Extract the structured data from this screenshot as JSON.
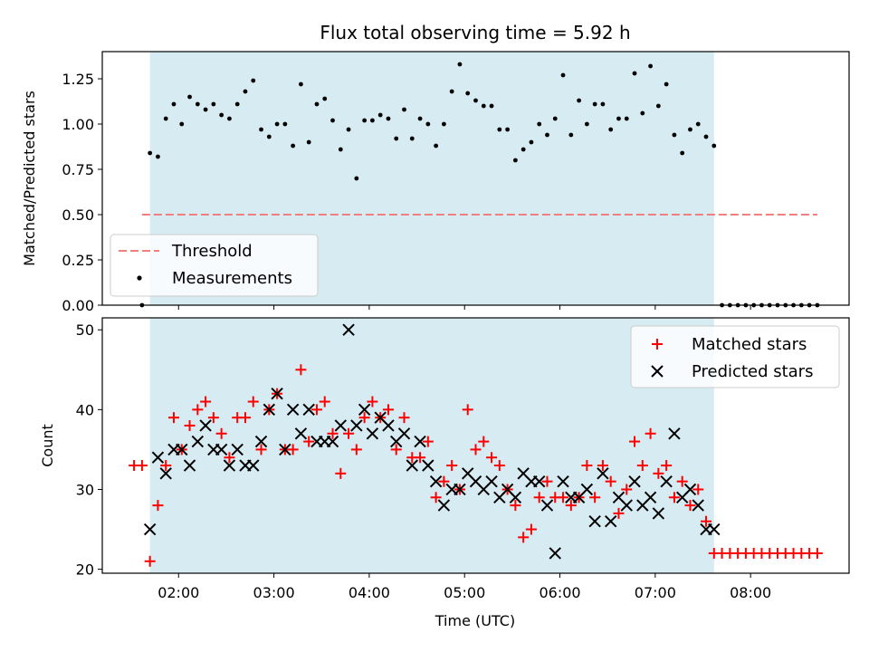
{
  "chart_data": [
    {
      "type": "scatter",
      "panel": "top",
      "title": "Flux total observing time = 5.92 h",
      "ylabel": "Matched/Predicted stars",
      "ylim": [
        0,
        1.4
      ],
      "yticks": [
        0.0,
        0.25,
        0.5,
        0.75,
        1.0,
        1.25
      ],
      "ytick_labels": [
        "0.00",
        "0.25",
        "0.50",
        "0.75",
        "1.00",
        "1.25"
      ],
      "grid": false,
      "legend_position": "bottom-left",
      "legend": [
        "Threshold",
        "Measurements"
      ],
      "observing_window": {
        "start": "01:42",
        "end": "07:37"
      },
      "threshold": {
        "name": "Threshold",
        "value": 0.5,
        "x_start": "01:37",
        "x_end": "08:42",
        "color": "#f08080"
      },
      "series": [
        {
          "name": "Measurements",
          "color": "#000000",
          "x": [
            "01:37",
            "01:42",
            "01:47",
            "01:52",
            "01:57",
            "02:02",
            "02:07",
            "02:12",
            "02:17",
            "02:22",
            "02:27",
            "02:32",
            "02:37",
            "02:42",
            "02:47",
            "02:52",
            "02:57",
            "03:02",
            "03:07",
            "03:12",
            "03:17",
            "03:22",
            "03:27",
            "03:32",
            "03:37",
            "03:42",
            "03:47",
            "03:52",
            "03:57",
            "04:02",
            "04:07",
            "04:12",
            "04:17",
            "04:22",
            "04:27",
            "04:32",
            "04:37",
            "04:42",
            "04:47",
            "04:52",
            "04:57",
            "05:02",
            "05:07",
            "05:12",
            "05:17",
            "05:22",
            "05:27",
            "05:32",
            "05:37",
            "05:42",
            "05:47",
            "05:52",
            "05:57",
            "06:02",
            "06:07",
            "06:12",
            "06:17",
            "06:22",
            "06:27",
            "06:32",
            "06:37",
            "06:42",
            "06:47",
            "06:52",
            "06:57",
            "07:02",
            "07:07",
            "07:12",
            "07:17",
            "07:22",
            "07:27",
            "07:32",
            "07:37",
            "07:42",
            "07:47",
            "07:52",
            "07:57",
            "08:02",
            "08:07",
            "08:12",
            "08:17",
            "08:22",
            "08:27",
            "08:32",
            "08:37",
            "08:42"
          ],
          "y": [
            0,
            0.84,
            0.82,
            1.03,
            1.11,
            1.0,
            1.15,
            1.11,
            1.08,
            1.11,
            1.05,
            1.03,
            1.11,
            1.18,
            1.24,
            0.97,
            0.93,
            1.0,
            1.0,
            0.88,
            1.22,
            0.9,
            1.11,
            1.14,
            1.02,
            0.86,
            0.97,
            0.7,
            1.02,
            1.02,
            1.05,
            1.03,
            0.92,
            1.08,
            0.92,
            1.03,
            1.0,
            0.88,
            1.0,
            1.18,
            1.33,
            1.17,
            1.13,
            1.1,
            1.1,
            0.97,
            0.97,
            0.8,
            0.86,
            0.9,
            1.0,
            0.94,
            1.03,
            1.27,
            0.94,
            1.13,
            1.0,
            1.11,
            1.11,
            0.97,
            1.03,
            1.03,
            1.28,
            1.06,
            1.32,
            1.1,
            1.22,
            0.94,
            0.84,
            0.97,
            1.0,
            0.93,
            0.88,
            0,
            0,
            0,
            0,
            0,
            0,
            0,
            0,
            0,
            0,
            0,
            0,
            0
          ]
        }
      ]
    },
    {
      "type": "scatter",
      "panel": "bottom",
      "xlabel": "Time (UTC)",
      "ylabel": "Count",
      "ylim": [
        19.5,
        51.5
      ],
      "yticks": [
        20,
        30,
        40,
        50
      ],
      "xlim": [
        "01:12",
        "09:02"
      ],
      "xticks": [
        "02:00",
        "03:00",
        "04:00",
        "05:00",
        "06:00",
        "07:00",
        "08:00"
      ],
      "grid": false,
      "legend_position": "top-right",
      "observing_window": {
        "start": "01:42",
        "end": "07:37"
      },
      "series": [
        {
          "name": "Matched stars",
          "marker": "+",
          "color": "#ff0000",
          "x": [
            "01:32",
            "01:37",
            "01:42",
            "01:47",
            "01:52",
            "01:57",
            "02:02",
            "02:07",
            "02:12",
            "02:17",
            "02:22",
            "02:27",
            "02:32",
            "02:37",
            "02:42",
            "02:47",
            "02:52",
            "02:57",
            "03:02",
            "03:07",
            "03:12",
            "03:17",
            "03:22",
            "03:27",
            "03:32",
            "03:37",
            "03:42",
            "03:47",
            "03:52",
            "03:57",
            "04:02",
            "04:07",
            "04:12",
            "04:17",
            "04:22",
            "04:27",
            "04:32",
            "04:37",
            "04:42",
            "04:47",
            "04:52",
            "04:57",
            "05:02",
            "05:07",
            "05:12",
            "05:17",
            "05:22",
            "05:27",
            "05:32",
            "05:37",
            "05:42",
            "05:47",
            "05:52",
            "05:57",
            "06:02",
            "06:07",
            "06:12",
            "06:17",
            "06:22",
            "06:27",
            "06:32",
            "06:37",
            "06:42",
            "06:47",
            "06:52",
            "06:57",
            "07:02",
            "07:07",
            "07:12",
            "07:17",
            "07:22",
            "07:27",
            "07:32",
            "07:37",
            "07:42",
            "07:47",
            "07:52",
            "07:57",
            "08:02",
            "08:07",
            "08:12",
            "08:17",
            "08:22",
            "08:27",
            "08:32",
            "08:37",
            "08:42"
          ],
          "y": [
            33,
            33,
            21,
            28,
            33,
            39,
            35,
            38,
            40,
            41,
            39,
            37,
            34,
            39,
            39,
            41,
            35,
            40,
            42,
            35,
            35,
            45,
            36,
            40,
            41,
            37,
            32,
            37,
            35,
            39,
            41,
            39,
            40,
            35,
            39,
            34,
            34,
            36,
            29,
            31,
            33,
            30,
            40,
            35,
            36,
            34,
            33,
            30,
            28,
            24,
            25,
            29,
            31,
            29,
            29,
            28,
            29,
            33,
            29,
            33,
            31,
            27,
            30,
            36,
            33,
            37,
            32,
            33,
            29,
            31,
            28,
            30,
            26,
            22,
            22,
            22,
            22,
            22,
            22,
            22,
            22,
            22,
            22,
            22,
            22,
            22,
            22
          ]
        },
        {
          "name": "Predicted stars",
          "marker": "x",
          "color": "#000000",
          "x": [
            "01:42",
            "01:47",
            "01:52",
            "01:57",
            "02:02",
            "02:07",
            "02:12",
            "02:17",
            "02:22",
            "02:27",
            "02:32",
            "02:37",
            "02:42",
            "02:47",
            "02:52",
            "02:57",
            "03:02",
            "03:07",
            "03:12",
            "03:17",
            "03:22",
            "03:27",
            "03:32",
            "03:37",
            "03:42",
            "03:47",
            "03:52",
            "03:57",
            "04:02",
            "04:07",
            "04:12",
            "04:17",
            "04:22",
            "04:27",
            "04:32",
            "04:37",
            "04:42",
            "04:47",
            "04:52",
            "04:57",
            "05:02",
            "05:07",
            "05:12",
            "05:17",
            "05:22",
            "05:27",
            "05:32",
            "05:37",
            "05:42",
            "05:47",
            "05:52",
            "05:57",
            "06:02",
            "06:07",
            "06:12",
            "06:17",
            "06:22",
            "06:27",
            "06:32",
            "06:37",
            "06:42",
            "06:47",
            "06:52",
            "06:57",
            "07:02",
            "07:07",
            "07:12",
            "07:17",
            "07:22",
            "07:27",
            "07:32",
            "07:37"
          ],
          "y": [
            25,
            34,
            32,
            35,
            35,
            33,
            36,
            38,
            35,
            35,
            33,
            35,
            33,
            33,
            36,
            40,
            42,
            35,
            40,
            37,
            40,
            36,
            36,
            36,
            38,
            50,
            38,
            40,
            37,
            39,
            38,
            36,
            37,
            33,
            36,
            33,
            31,
            28,
            30,
            30,
            32,
            31,
            30,
            31,
            29,
            30,
            29,
            32,
            31,
            31,
            28,
            22,
            31,
            29,
            29,
            30,
            26,
            32,
            26,
            29,
            28,
            31,
            28,
            29,
            27,
            31,
            37,
            29,
            30,
            28,
            25,
            25
          ]
        }
      ]
    }
  ]
}
